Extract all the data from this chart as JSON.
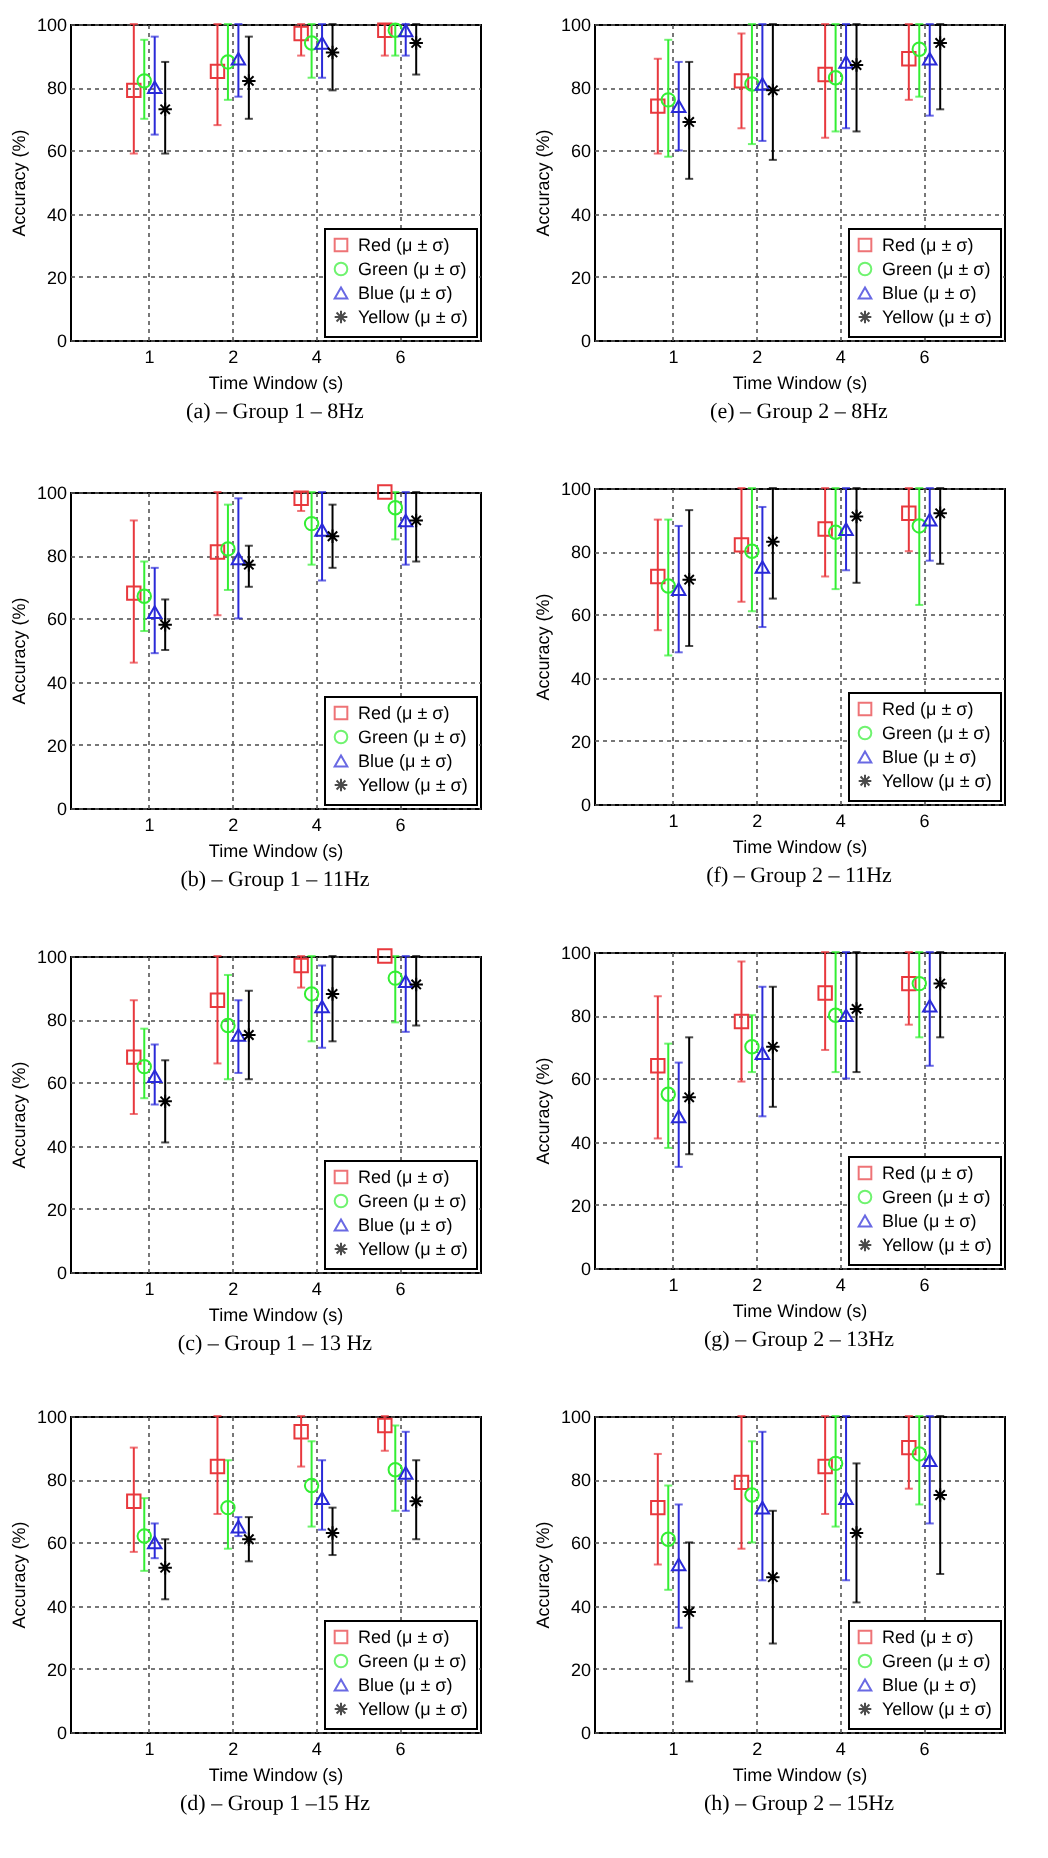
{
  "chart_data": [
    {
      "type": "scatter",
      "title": "(a) – Group 1 – 8Hz",
      "xlabel": "Time Window (s)",
      "ylabel": "Accuracy (%)",
      "categories": [
        "1",
        "2",
        "4",
        "6"
      ],
      "ylim": [
        0,
        100
      ],
      "yticks": [
        0,
        20,
        40,
        60,
        80,
        100
      ],
      "grid": true,
      "legend": "bottom right",
      "series": [
        {
          "name": "Red (μ ± σ)",
          "color": "#e8383d",
          "marker": "square",
          "values": [
            79,
            85,
            97,
            98
          ],
          "errors": [
            [
              59,
              100
            ],
            [
              68,
              100
            ],
            [
              90,
              100
            ],
            [
              90,
              100
            ]
          ]
        },
        {
          "name": "Green (μ ± σ)",
          "color": "#33ee33",
          "marker": "circle",
          "values": [
            82,
            88,
            94,
            98
          ],
          "errors": [
            [
              70,
              95
            ],
            [
              76,
              100
            ],
            [
              83,
              100
            ],
            [
              90,
              100
            ]
          ]
        },
        {
          "name": "Blue (μ ± σ)",
          "color": "#2a2ad8",
          "marker": "triangle",
          "values": [
            80,
            89,
            94,
            98
          ],
          "errors": [
            [
              65,
              96
            ],
            [
              77,
              100
            ],
            [
              83,
              100
            ],
            [
              90,
              100
            ]
          ]
        },
        {
          "name": "Yellow (μ ± σ)",
          "color": "#000000",
          "marker": "cross",
          "values": [
            73,
            82,
            91,
            94
          ],
          "errors": [
            [
              59,
              88
            ],
            [
              70,
              96
            ],
            [
              79,
              100
            ],
            [
              84,
              100
            ]
          ]
        }
      ]
    },
    {
      "type": "scatter",
      "title": "(e) – Group 2 – 8Hz",
      "xlabel": "Time Window (s)",
      "ylabel": "Accuracy (%)",
      "categories": [
        "1",
        "2",
        "4",
        "6"
      ],
      "ylim": [
        0,
        100
      ],
      "yticks": [
        0,
        20,
        40,
        60,
        80,
        100
      ],
      "grid": true,
      "legend": "bottom right",
      "series": [
        {
          "name": "Red (μ ± σ)",
          "color": "#e8383d",
          "marker": "square",
          "values": [
            74,
            82,
            84,
            89
          ],
          "errors": [
            [
              59,
              89
            ],
            [
              67,
              97
            ],
            [
              64,
              100
            ],
            [
              76,
              100
            ]
          ]
        },
        {
          "name": "Green (μ ± σ)",
          "color": "#33ee33",
          "marker": "circle",
          "values": [
            76,
            81,
            83,
            92
          ],
          "errors": [
            [
              58,
              95
            ],
            [
              62,
              100
            ],
            [
              66,
              100
            ],
            [
              77,
              100
            ]
          ]
        },
        {
          "name": "Blue (μ ± σ)",
          "color": "#2a2ad8",
          "marker": "triangle",
          "values": [
            74,
            81,
            88,
            89
          ],
          "errors": [
            [
              60,
              88
            ],
            [
              63,
              100
            ],
            [
              67,
              100
            ],
            [
              71,
              100
            ]
          ]
        },
        {
          "name": "Yellow (μ ± σ)",
          "color": "#000000",
          "marker": "cross",
          "values": [
            69,
            79,
            87,
            94
          ],
          "errors": [
            [
              51,
              88
            ],
            [
              57,
              100
            ],
            [
              66,
              100
            ],
            [
              73,
              100
            ]
          ]
        }
      ]
    },
    {
      "type": "scatter",
      "title": "(b) – Group 1 – 11Hz",
      "xlabel": "Time Window (s)",
      "ylabel": "Accuracy (%)",
      "categories": [
        "1",
        "2",
        "4",
        "6"
      ],
      "ylim": [
        0,
        100
      ],
      "yticks": [
        0,
        20,
        40,
        60,
        80,
        100
      ],
      "grid": true,
      "legend": "bottom right",
      "series": [
        {
          "name": "Red (μ ± σ)",
          "color": "#e8383d",
          "marker": "square",
          "values": [
            68,
            81,
            98,
            100
          ],
          "errors": [
            [
              46,
              91
            ],
            [
              61,
              100
            ],
            [
              94,
              100
            ],
            null
          ]
        },
        {
          "name": "Green (μ ± σ)",
          "color": "#33ee33",
          "marker": "circle",
          "values": [
            67,
            82,
            90,
            95
          ],
          "errors": [
            [
              56,
              78
            ],
            [
              69,
              96
            ],
            [
              77,
              100
            ],
            [
              85,
              100
            ]
          ]
        },
        {
          "name": "Blue (μ ± σ)",
          "color": "#2a2ad8",
          "marker": "triangle",
          "values": [
            62,
            79,
            88,
            91
          ],
          "errors": [
            [
              49,
              76
            ],
            [
              60,
              98
            ],
            [
              72,
              100
            ],
            [
              77,
              100
            ]
          ]
        },
        {
          "name": "Yellow (μ ± σ)",
          "color": "#000000",
          "marker": "cross",
          "values": [
            58,
            77,
            86,
            91
          ],
          "errors": [
            [
              50,
              66
            ],
            [
              70,
              83
            ],
            [
              76,
              96
            ],
            [
              78,
              100
            ]
          ]
        }
      ]
    },
    {
      "type": "scatter",
      "title": "(f) – Group 2 – 11Hz",
      "xlabel": "Time Window (s)",
      "ylabel": "Accuracy (%)",
      "categories": [
        "1",
        "2",
        "4",
        "6"
      ],
      "ylim": [
        0,
        100
      ],
      "yticks": [
        0,
        20,
        40,
        60,
        80,
        100
      ],
      "grid": true,
      "legend": "bottom right",
      "series": [
        {
          "name": "Red (μ ± σ)",
          "color": "#e8383d",
          "marker": "square",
          "values": [
            72,
            82,
            87,
            92
          ],
          "errors": [
            [
              55,
              90
            ],
            [
              64,
              100
            ],
            [
              72,
              100
            ],
            [
              80,
              100
            ]
          ]
        },
        {
          "name": "Green (μ ± σ)",
          "color": "#33ee33",
          "marker": "circle",
          "values": [
            69,
            80,
            86,
            88
          ],
          "errors": [
            [
              47,
              90
            ],
            [
              61,
              100
            ],
            [
              68,
              100
            ],
            [
              63,
              100
            ]
          ]
        },
        {
          "name": "Blue (μ ± σ)",
          "color": "#2a2ad8",
          "marker": "triangle",
          "values": [
            68,
            75,
            87,
            90
          ],
          "errors": [
            [
              48,
              88
            ],
            [
              56,
              94
            ],
            [
              74,
              100
            ],
            [
              77,
              100
            ]
          ]
        },
        {
          "name": "Yellow (μ ± σ)",
          "color": "#000000",
          "marker": "cross",
          "values": [
            71,
            83,
            91,
            92
          ],
          "errors": [
            [
              50,
              93
            ],
            [
              65,
              100
            ],
            [
              70,
              100
            ],
            [
              76,
              100
            ]
          ]
        }
      ]
    },
    {
      "type": "scatter",
      "title": "(c) – Group 1 – 13 Hz",
      "xlabel": "Time Window (s)",
      "ylabel": "Accuracy (%)",
      "categories": [
        "1",
        "2",
        "4",
        "6"
      ],
      "ylim": [
        0,
        100
      ],
      "yticks": [
        0,
        20,
        40,
        60,
        80,
        100
      ],
      "grid": true,
      "legend": "bottom right",
      "series": [
        {
          "name": "Red (μ ± σ)",
          "color": "#e8383d",
          "marker": "square",
          "values": [
            68,
            86,
            97,
            100
          ],
          "errors": [
            [
              50,
              86
            ],
            [
              66,
              100
            ],
            [
              90,
              100
            ],
            null
          ]
        },
        {
          "name": "Green (μ ± σ)",
          "color": "#33ee33",
          "marker": "circle",
          "values": [
            65,
            78,
            88,
            93
          ],
          "errors": [
            [
              55,
              77
            ],
            [
              61,
              94
            ],
            [
              73,
              100
            ],
            [
              79,
              100
            ]
          ]
        },
        {
          "name": "Blue (μ ± σ)",
          "color": "#2a2ad8",
          "marker": "triangle",
          "values": [
            62,
            75,
            84,
            92
          ],
          "errors": [
            [
              53,
              72
            ],
            [
              63,
              86
            ],
            [
              71,
              97
            ],
            [
              76,
              100
            ]
          ]
        },
        {
          "name": "Yellow (μ ± σ)",
          "color": "#000000",
          "marker": "cross",
          "values": [
            54,
            75,
            88,
            91
          ],
          "errors": [
            [
              41,
              67
            ],
            [
              61,
              89
            ],
            [
              73,
              100
            ],
            [
              78,
              100
            ]
          ]
        }
      ]
    },
    {
      "type": "scatter",
      "title": "(g) – Group 2 – 13Hz",
      "xlabel": "Time Window (s)",
      "ylabel": "Accuracy (%)",
      "categories": [
        "1",
        "2",
        "4",
        "6"
      ],
      "ylim": [
        0,
        100
      ],
      "yticks": [
        0,
        20,
        40,
        60,
        80,
        100
      ],
      "grid": true,
      "legend": "bottom right",
      "series": [
        {
          "name": "Red (μ ± σ)",
          "color": "#e8383d",
          "marker": "square",
          "values": [
            64,
            78,
            87,
            90
          ],
          "errors": [
            [
              41,
              86
            ],
            [
              59,
              97
            ],
            [
              69,
              100
            ],
            [
              77,
              100
            ]
          ]
        },
        {
          "name": "Green (μ ± σ)",
          "color": "#33ee33",
          "marker": "circle",
          "values": [
            55,
            70,
            80,
            90
          ],
          "errors": [
            [
              38,
              71
            ],
            [
              62,
              80
            ],
            [
              62,
              100
            ],
            [
              73,
              100
            ]
          ]
        },
        {
          "name": "Blue (μ ± σ)",
          "color": "#2a2ad8",
          "marker": "triangle",
          "values": [
            48,
            68,
            80,
            83
          ],
          "errors": [
            [
              32,
              65
            ],
            [
              48,
              89
            ],
            [
              60,
              100
            ],
            [
              64,
              100
            ]
          ]
        },
        {
          "name": "Yellow (μ ± σ)",
          "color": "#000000",
          "marker": "cross",
          "values": [
            54,
            70,
            82,
            90
          ],
          "errors": [
            [
              36,
              73
            ],
            [
              51,
              89
            ],
            [
              62,
              100
            ],
            [
              73,
              100
            ]
          ]
        }
      ]
    },
    {
      "type": "scatter",
      "title": "(d) – Group 1 –15 Hz",
      "xlabel": "Time Window (s)",
      "ylabel": "Accuracy (%)",
      "categories": [
        "1",
        "2",
        "4",
        "6"
      ],
      "ylim": [
        0,
        100
      ],
      "yticks": [
        0,
        20,
        40,
        60,
        80,
        100
      ],
      "grid": true,
      "legend": "bottom right",
      "series": [
        {
          "name": "Red (μ ± σ)",
          "color": "#e8383d",
          "marker": "square",
          "values": [
            73,
            84,
            95,
            97
          ],
          "errors": [
            [
              57,
              90
            ],
            [
              69,
              100
            ],
            [
              84,
              100
            ],
            [
              89,
              100
            ]
          ]
        },
        {
          "name": "Green (μ ± σ)",
          "color": "#33ee33",
          "marker": "circle",
          "values": [
            62,
            71,
            78,
            83
          ],
          "errors": [
            [
              51,
              74
            ],
            [
              58,
              86
            ],
            [
              65,
              92
            ],
            [
              70,
              97
            ]
          ]
        },
        {
          "name": "Blue (μ ± σ)",
          "color": "#2a2ad8",
          "marker": "triangle",
          "values": [
            60,
            65,
            74,
            82
          ],
          "errors": [
            [
              55,
              66
            ],
            [
              62,
              68
            ],
            [
              64,
              86
            ],
            [
              70,
              95
            ]
          ]
        },
        {
          "name": "Yellow (μ ± σ)",
          "color": "#000000",
          "marker": "cross",
          "values": [
            52,
            61,
            63,
            73
          ],
          "errors": [
            [
              42,
              61
            ],
            [
              54,
              68
            ],
            [
              56,
              71
            ],
            [
              61,
              86
            ]
          ]
        }
      ]
    },
    {
      "type": "scatter",
      "title": "(h) – Group 2 – 15Hz",
      "xlabel": "Time Window (s)",
      "ylabel": "Accuracy (%)",
      "categories": [
        "1",
        "2",
        "4",
        "6"
      ],
      "ylim": [
        0,
        100
      ],
      "yticks": [
        0,
        20,
        40,
        60,
        80,
        100
      ],
      "grid": true,
      "legend": "bottom right",
      "series": [
        {
          "name": "Red (μ ± σ)",
          "color": "#e8383d",
          "marker": "square",
          "values": [
            71,
            79,
            84,
            90
          ],
          "errors": [
            [
              53,
              88
            ],
            [
              58,
              100
            ],
            [
              69,
              100
            ],
            [
              77,
              100
            ]
          ]
        },
        {
          "name": "Green (μ ± σ)",
          "color": "#33ee33",
          "marker": "circle",
          "values": [
            61,
            75,
            85,
            88
          ],
          "errors": [
            [
              45,
              78
            ],
            [
              60,
              92
            ],
            [
              65,
              100
            ],
            [
              72,
              100
            ]
          ]
        },
        {
          "name": "Blue (μ ± σ)",
          "color": "#2a2ad8",
          "marker": "triangle",
          "values": [
            53,
            71,
            74,
            86
          ],
          "errors": [
            [
              33,
              72
            ],
            [
              48,
              95
            ],
            [
              48,
              100
            ],
            [
              66,
              100
            ]
          ]
        },
        {
          "name": "Yellow (μ ± σ)",
          "color": "#000000",
          "marker": "cross",
          "values": [
            38,
            49,
            63,
            75
          ],
          "errors": [
            [
              16,
              60
            ],
            [
              28,
              70
            ],
            [
              41,
              85
            ],
            [
              50,
              100
            ]
          ]
        }
      ]
    }
  ]
}
